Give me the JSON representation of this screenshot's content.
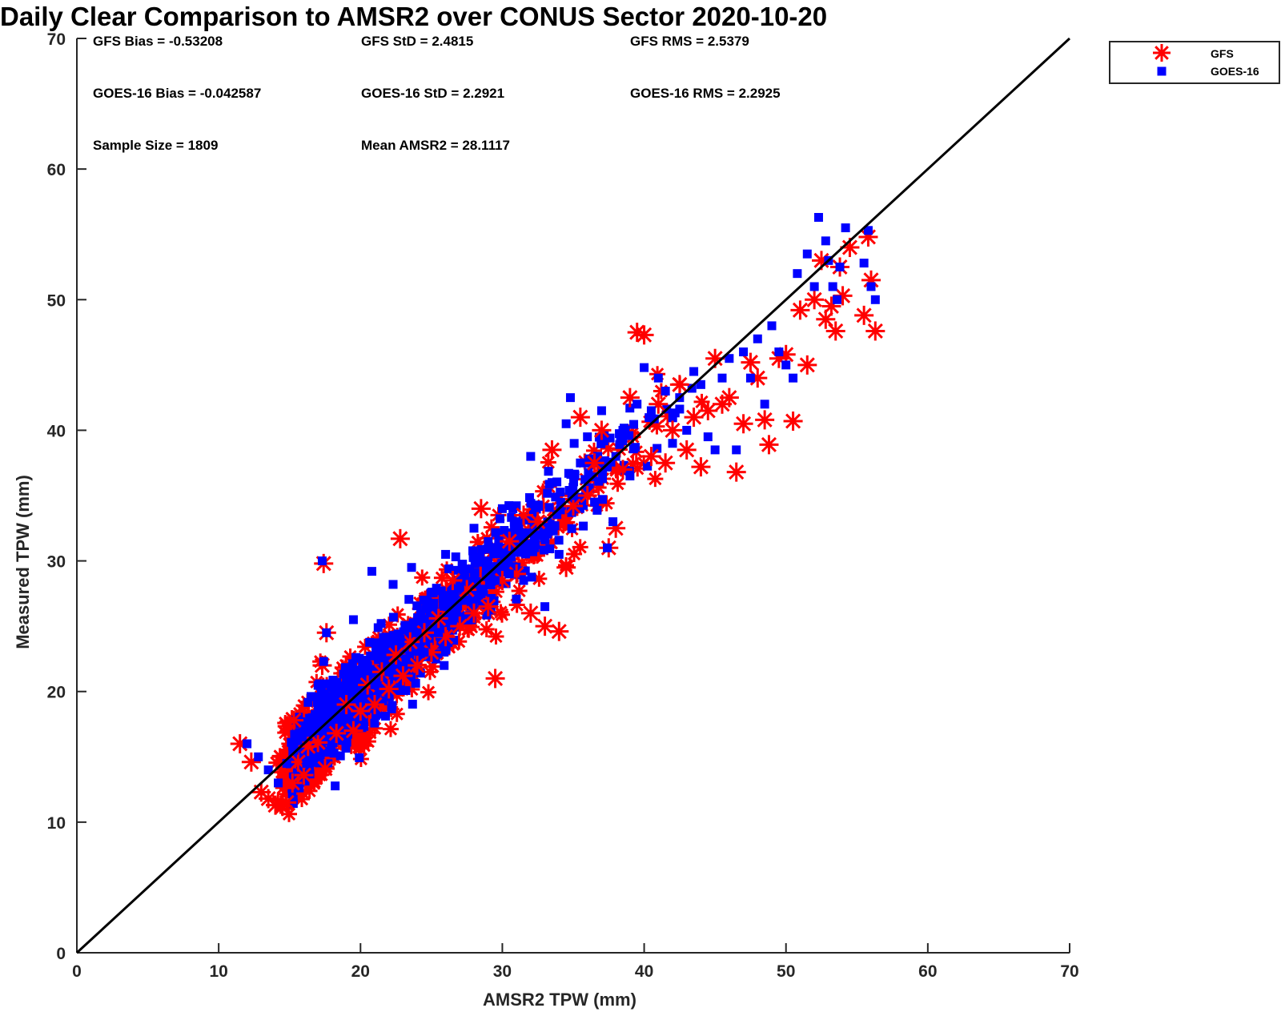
{
  "chart_data": {
    "type": "scatter",
    "title": "Daily Clear Comparison to AMSR2 over CONUS Sector 2020-10-20",
    "xlabel": "AMSR2 TPW (mm)",
    "ylabel": "Measured TPW (mm)",
    "xlim": [
      0,
      70
    ],
    "ylim": [
      0,
      70
    ],
    "xticks": [
      "0",
      "10",
      "20",
      "30",
      "40",
      "50",
      "60",
      "70"
    ],
    "yticks": [
      "0",
      "10",
      "20",
      "30",
      "40",
      "50",
      "60",
      "70"
    ],
    "grid": false,
    "legend_position": "top-right",
    "reference_line": {
      "type": "one-to-one",
      "x": [
        0,
        70
      ],
      "y": [
        0,
        70
      ]
    },
    "stats": [
      "GFS Bias = -0.53208",
      "GFS StD = 2.4815",
      "GFS RMS = 2.5379",
      "GOES-16 Bias = -0.042587",
      "GOES-16 StD = 2.2921",
      "GOES-16 RMS = 2.2925",
      "Sample Size = 1809",
      "Mean AMSR2 = 28.1117"
    ],
    "series": [
      {
        "name": "GFS",
        "marker": "asterisk",
        "color": "#ff0000",
        "points": [
          [
            11.5,
            16.0
          ],
          [
            12.3,
            14.6
          ],
          [
            13.0,
            12.3
          ],
          [
            13.5,
            11.8
          ],
          [
            14.0,
            11.3
          ],
          [
            14.5,
            11.2
          ],
          [
            14.8,
            11.5
          ],
          [
            15.2,
            13.0
          ],
          [
            15.6,
            14.6
          ],
          [
            16.0,
            13.6
          ],
          [
            16.3,
            15.8
          ],
          [
            15.3,
            17.8
          ],
          [
            17.0,
            16.1
          ],
          [
            17.5,
            14.1
          ],
          [
            17.4,
            29.8
          ],
          [
            17.6,
            24.5
          ],
          [
            17.3,
            22.0
          ],
          [
            18.3,
            16.8
          ],
          [
            19.0,
            19.0
          ],
          [
            19.5,
            17.0
          ],
          [
            20.0,
            18.5
          ],
          [
            20.5,
            20.5
          ],
          [
            21.0,
            19.0
          ],
          [
            21.5,
            21.5
          ],
          [
            22.0,
            20.2
          ],
          [
            22.5,
            22.8
          ],
          [
            22.8,
            31.7
          ],
          [
            23.0,
            21.2
          ],
          [
            23.5,
            23.8
          ],
          [
            24.0,
            22.0
          ],
          [
            24.5,
            24.5
          ],
          [
            25.0,
            23.0
          ],
          [
            25.5,
            25.6
          ],
          [
            26.0,
            24.2
          ],
          [
            26.5,
            28.5
          ],
          [
            27.0,
            25.0
          ],
          [
            27.5,
            27.8
          ],
          [
            28.0,
            26.0
          ],
          [
            28.5,
            34.0
          ],
          [
            29.0,
            26.5
          ],
          [
            29.5,
            21.0
          ],
          [
            30.0,
            28.5
          ],
          [
            30.5,
            31.5
          ],
          [
            31.0,
            29.0
          ],
          [
            31.5,
            33.5
          ],
          [
            32.0,
            26.0
          ],
          [
            32.5,
            33.0
          ],
          [
            33.0,
            25.0
          ],
          [
            33.5,
            38.5
          ],
          [
            34.0,
            24.6
          ],
          [
            34.5,
            29.5
          ],
          [
            35.0,
            34.2
          ],
          [
            35.5,
            41.0
          ],
          [
            36.0,
            35.0
          ],
          [
            36.5,
            37.5
          ],
          [
            37.0,
            40.0
          ],
          [
            37.5,
            31.0
          ],
          [
            38.0,
            32.5
          ],
          [
            38.5,
            37.0
          ],
          [
            39.0,
            42.5
          ],
          [
            39.5,
            47.5
          ],
          [
            40.0,
            47.3
          ],
          [
            40.5,
            38.0
          ],
          [
            41.0,
            42.0
          ],
          [
            41.5,
            37.5
          ],
          [
            42.0,
            40.0
          ],
          [
            42.5,
            43.5
          ],
          [
            43.0,
            38.5
          ],
          [
            43.5,
            41.0
          ],
          [
            44.0,
            37.2
          ],
          [
            44.5,
            41.5
          ],
          [
            45.0,
            45.5
          ],
          [
            45.5,
            42.0
          ],
          [
            46.0,
            42.5
          ],
          [
            46.5,
            36.8
          ],
          [
            47.0,
            40.5
          ],
          [
            47.5,
            45.2
          ],
          [
            48.0,
            44.0
          ],
          [
            48.5,
            40.8
          ],
          [
            48.8,
            38.9
          ],
          [
            49.5,
            45.5
          ],
          [
            50.0,
            45.8
          ],
          [
            50.5,
            40.7
          ],
          [
            51.0,
            49.2
          ],
          [
            51.5,
            45.0
          ],
          [
            52.0,
            50.0
          ],
          [
            52.5,
            53.0
          ],
          [
            52.8,
            48.5
          ],
          [
            53.2,
            49.5
          ],
          [
            53.5,
            47.6
          ],
          [
            54.0,
            50.3
          ],
          [
            53.8,
            52.5
          ],
          [
            54.5,
            54.0
          ],
          [
            55.5,
            48.8
          ],
          [
            55.8,
            54.8
          ],
          [
            56.0,
            51.5
          ],
          [
            56.3,
            47.6
          ]
        ]
      },
      {
        "name": "GOES-16",
        "marker": "square",
        "color": "#0000ff",
        "points": [
          [
            12.0,
            16.0
          ],
          [
            12.8,
            15.0
          ],
          [
            13.5,
            14.0
          ],
          [
            14.2,
            13.0
          ],
          [
            14.8,
            14.5
          ],
          [
            15.3,
            15.5
          ],
          [
            15.8,
            16.5
          ],
          [
            16.2,
            14.5
          ],
          [
            16.6,
            18.0
          ],
          [
            17.0,
            17.0
          ],
          [
            17.3,
            30.0
          ],
          [
            17.6,
            24.5
          ],
          [
            17.4,
            22.3
          ],
          [
            18.0,
            19.5
          ],
          [
            18.5,
            18.0
          ],
          [
            19.0,
            21.0
          ],
          [
            19.5,
            25.5
          ],
          [
            20.0,
            19.5
          ],
          [
            20.5,
            22.0
          ],
          [
            20.8,
            29.2
          ],
          [
            21.0,
            20.5
          ],
          [
            21.5,
            23.5
          ],
          [
            22.0,
            21.5
          ],
          [
            22.3,
            28.2
          ],
          [
            22.8,
            24.0
          ],
          [
            23.2,
            22.5
          ],
          [
            23.6,
            29.5
          ],
          [
            24.0,
            24.5
          ],
          [
            24.5,
            23.0
          ],
          [
            25.0,
            26.5
          ],
          [
            25.5,
            24.5
          ],
          [
            26.0,
            30.5
          ],
          [
            26.5,
            25.5
          ],
          [
            27.0,
            28.0
          ],
          [
            27.5,
            27.0
          ],
          [
            28.0,
            32.5
          ],
          [
            28.5,
            27.5
          ],
          [
            29.0,
            30.0
          ],
          [
            29.5,
            28.5
          ],
          [
            30.0,
            34.0
          ],
          [
            30.5,
            29.0
          ],
          [
            31.0,
            33.0
          ],
          [
            31.5,
            28.5
          ],
          [
            32.0,
            38.0
          ],
          [
            32.5,
            32.0
          ],
          [
            33.0,
            26.5
          ],
          [
            33.5,
            36.0
          ],
          [
            34.0,
            30.5
          ],
          [
            34.5,
            40.5
          ],
          [
            34.8,
            42.5
          ],
          [
            35.0,
            35.0
          ],
          [
            35.5,
            37.5
          ],
          [
            36.0,
            39.5
          ],
          [
            36.5,
            34.5
          ],
          [
            37.0,
            41.5
          ],
          [
            37.4,
            31.0
          ],
          [
            37.8,
            33.0
          ],
          [
            38.0,
            38.0
          ],
          [
            38.5,
            40.0
          ],
          [
            39.0,
            36.5
          ],
          [
            39.5,
            42.0
          ],
          [
            40.0,
            44.8
          ],
          [
            40.5,
            41.5
          ],
          [
            41.0,
            44.0
          ],
          [
            41.5,
            43.0
          ],
          [
            42.0,
            39.0
          ],
          [
            42.5,
            42.5
          ],
          [
            43.0,
            40.0
          ],
          [
            43.5,
            44.5
          ],
          [
            44.0,
            43.5
          ],
          [
            44.5,
            39.5
          ],
          [
            45.0,
            38.5
          ],
          [
            45.5,
            44.0
          ],
          [
            46.0,
            45.5
          ],
          [
            46.5,
            38.5
          ],
          [
            47.0,
            46.0
          ],
          [
            47.5,
            44.0
          ],
          [
            48.0,
            47.0
          ],
          [
            48.5,
            42.0
          ],
          [
            49.0,
            48.0
          ],
          [
            49.5,
            46.0
          ],
          [
            50.0,
            45.0
          ],
          [
            50.5,
            44.0
          ],
          [
            50.8,
            52.0
          ],
          [
            51.5,
            53.5
          ],
          [
            52.0,
            51.0
          ],
          [
            52.3,
            56.3
          ],
          [
            52.8,
            54.5
          ],
          [
            53.0,
            53.0
          ],
          [
            53.3,
            51.0
          ],
          [
            53.6,
            50.0
          ],
          [
            53.8,
            52.5
          ],
          [
            54.2,
            55.5
          ],
          [
            55.5,
            52.8
          ],
          [
            55.8,
            55.3
          ],
          [
            56.0,
            51.0
          ],
          [
            56.3,
            50.0
          ]
        ]
      }
    ]
  }
}
